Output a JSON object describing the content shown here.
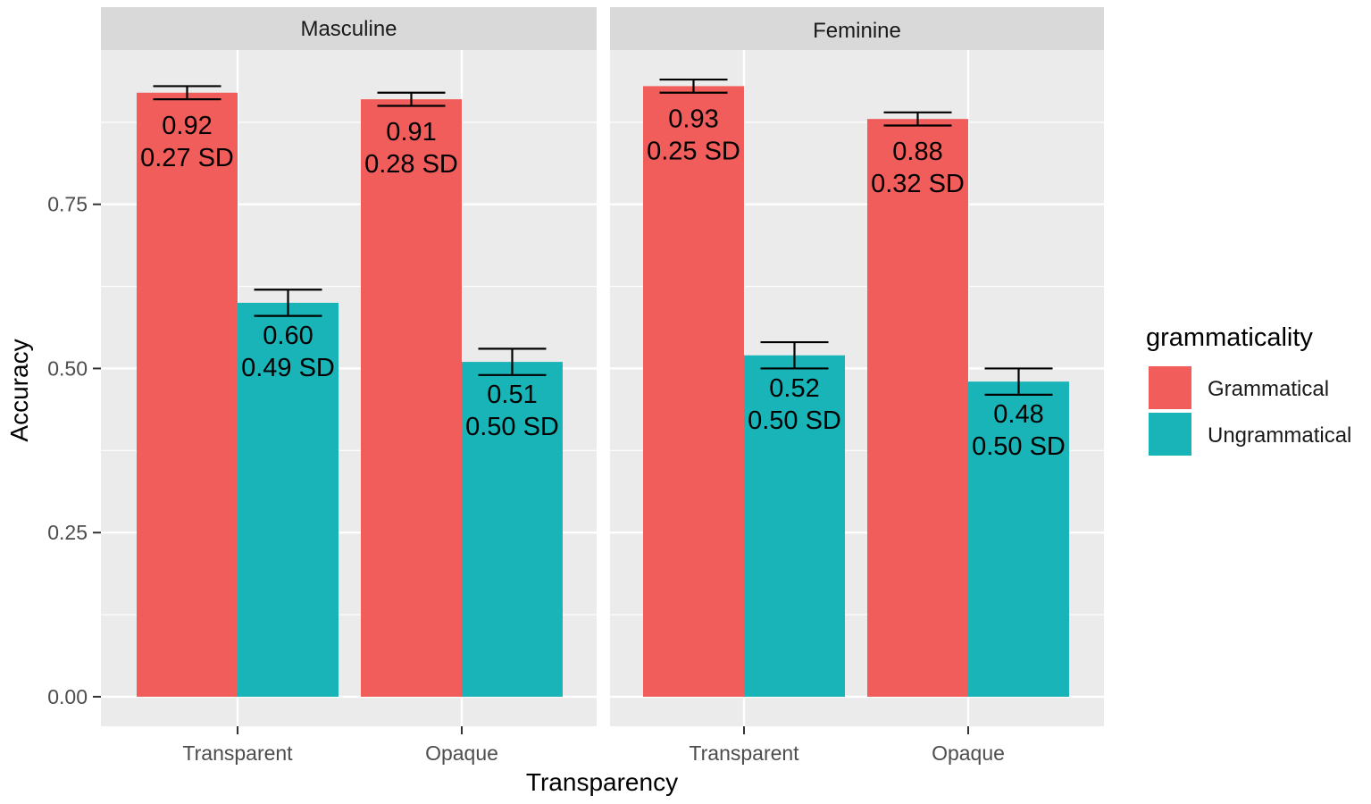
{
  "chart_data": {
    "type": "bar",
    "facets": [
      "Masculine",
      "Feminine"
    ],
    "categories": [
      "Transparent",
      "Opaque"
    ],
    "xlabel": "Transparency",
    "ylabel": "Accuracy",
    "ylim": [
      -0.045,
      0.985
    ],
    "yticks": [
      "0.00",
      "0.25",
      "0.50",
      "0.75"
    ],
    "ytick_values": [
      0,
      0.25,
      0.5,
      0.75
    ],
    "legend": {
      "title": "grammaticality",
      "entries": [
        {
          "name": "Grammatical",
          "color": "#F15D5A"
        },
        {
          "name": "Ungrammatical",
          "color": "#19B4B7"
        }
      ]
    },
    "panels": [
      {
        "facet": "Masculine",
        "bars": [
          {
            "category": "Transparent",
            "series": "Grammatical",
            "value": 0.92,
            "se": 0.01,
            "label_mean": "0.92",
            "label_sd": "0.27 SD"
          },
          {
            "category": "Transparent",
            "series": "Ungrammatical",
            "value": 0.6,
            "se": 0.02,
            "label_mean": "0.60",
            "label_sd": "0.49 SD"
          },
          {
            "category": "Opaque",
            "series": "Grammatical",
            "value": 0.91,
            "se": 0.01,
            "label_mean": "0.91",
            "label_sd": "0.28 SD"
          },
          {
            "category": "Opaque",
            "series": "Ungrammatical",
            "value": 0.51,
            "se": 0.02,
            "label_mean": "0.51",
            "label_sd": "0.50 SD"
          }
        ]
      },
      {
        "facet": "Feminine",
        "bars": [
          {
            "category": "Transparent",
            "series": "Grammatical",
            "value": 0.93,
            "se": 0.01,
            "label_mean": "0.93",
            "label_sd": "0.25 SD"
          },
          {
            "category": "Transparent",
            "series": "Ungrammatical",
            "value": 0.52,
            "se": 0.02,
            "label_mean": "0.52",
            "label_sd": "0.50 SD"
          },
          {
            "category": "Opaque",
            "series": "Grammatical",
            "value": 0.88,
            "se": 0.01,
            "label_mean": "0.88",
            "label_sd": "0.32 SD"
          },
          {
            "category": "Opaque",
            "series": "Ungrammatical",
            "value": 0.48,
            "se": 0.02,
            "label_mean": "0.48",
            "label_sd": "0.50 SD"
          }
        ]
      }
    ]
  }
}
